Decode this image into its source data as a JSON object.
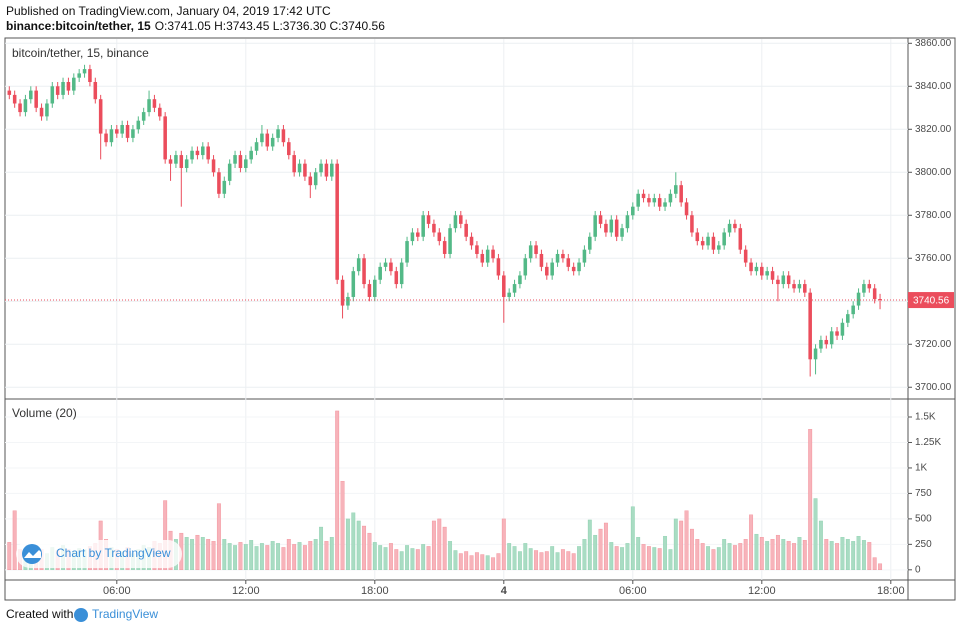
{
  "header": {
    "published": "Published on TradingView.com, January 04, 2019 17:42 UTC",
    "symbol": "binance:bitcoin/tether, 15",
    "ohlc": "O:3741.05 H:3743.45 L:3736.30 C:3740.56"
  },
  "watermark": "Chart by TradingView",
  "footer": {
    "prefix": "Created with",
    "brand": "TradingView"
  },
  "chart_data": {
    "type": "candlestick",
    "title": "bitcoin/tether, 15, binance",
    "up_color": "#53b987",
    "down_color": "#eb4d5c",
    "grid": true,
    "x": [
      1,
      1.25,
      1.5,
      1.75,
      2,
      2.25,
      2.5,
      2.75,
      3,
      3.25,
      3.5,
      3.75,
      4,
      4.25,
      4.5,
      4.75,
      5,
      5.25,
      5.5,
      5.75,
      6,
      6.25,
      6.5,
      6.75,
      7,
      7.25,
      7.5,
      7.75,
      8,
      8.25,
      8.5,
      8.75,
      9,
      9.25,
      9.5,
      9.75,
      10,
      10.25,
      10.5,
      10.75,
      11,
      11.25,
      11.5,
      11.75,
      12,
      12.25,
      12.5,
      12.75,
      13,
      13.25,
      13.5,
      13.75,
      14,
      14.25,
      14.5,
      14.75,
      15,
      15.25,
      15.5,
      15.75,
      16,
      16.25,
      16.5,
      16.75,
      17,
      17.25,
      17.5,
      17.75,
      18,
      18.25,
      18.5,
      18.75,
      19,
      19.25,
      19.5,
      19.75,
      20,
      20.25,
      20.5,
      20.75,
      21,
      21.25,
      21.5,
      21.75,
      22,
      22.25,
      22.5,
      22.75,
      23,
      23.25,
      23.5,
      23.75,
      24,
      24.25,
      24.5,
      24.75,
      25,
      25.25,
      25.5,
      25.75,
      26,
      26.25,
      26.5,
      26.75,
      27,
      27.25,
      27.5,
      27.75,
      28,
      28.25,
      28.5,
      28.75,
      29,
      29.25,
      29.5,
      29.75,
      30,
      30.25,
      30.5,
      30.75,
      31,
      31.25,
      31.5,
      31.75,
      32,
      32.25,
      32.5,
      32.75,
      33,
      33.25,
      33.5,
      33.75,
      34,
      34.25,
      34.5,
      34.75,
      35,
      35.25,
      35.5,
      35.75,
      36,
      36.25,
      36.5,
      36.75,
      37,
      37.25,
      37.5,
      37.75,
      38,
      38.25,
      38.5,
      38.75,
      39,
      39.25,
      39.5,
      39.75,
      40,
      40.25,
      40.5,
      40.75,
      41,
      41.25,
      41.5
    ],
    "open": [
      3838,
      3836,
      3832,
      3828,
      3834,
      3838,
      3830,
      3826,
      3832,
      3840,
      3836,
      3842,
      3838,
      3844,
      3846,
      3848,
      3842,
      3834,
      3818,
      3814,
      3820,
      3818,
      3822,
      3816,
      3820,
      3824,
      3828,
      3834,
      3830,
      3826,
      3806,
      3804,
      3808,
      3802,
      3806,
      3810,
      3808,
      3812,
      3806,
      3800,
      3790,
      3796,
      3804,
      3808,
      3802,
      3806,
      3810,
      3814,
      3818,
      3812,
      3816,
      3820,
      3814,
      3808,
      3800,
      3804,
      3798,
      3794,
      3800,
      3804,
      3798,
      3804,
      3750,
      3738,
      3742,
      3754,
      3760,
      3748,
      3742,
      3750,
      3756,
      3758,
      3754,
      3748,
      3758,
      3768,
      3772,
      3770,
      3780,
      3776,
      3772,
      3768,
      3762,
      3774,
      3780,
      3776,
      3770,
      3766,
      3762,
      3758,
      3764,
      3760,
      3752,
      3742,
      3744,
      3748,
      3752,
      3760,
      3766,
      3762,
      3756,
      3752,
      3758,
      3762,
      3760,
      3756,
      3754,
      3758,
      3764,
      3770,
      3780,
      3776,
      3772,
      3778,
      3770,
      3774,
      3780,
      3784,
      3790,
      3788,
      3786,
      3788,
      3784,
      3786,
      3790,
      3794,
      3786,
      3780,
      3772,
      3768,
      3766,
      3770,
      3764,
      3766,
      3772,
      3776,
      3774,
      3764,
      3758,
      3754,
      3756,
      3752,
      3754,
      3750,
      3748,
      3752,
      3748,
      3746,
      3748,
      3744,
      3713,
      3718,
      3722,
      3720,
      3726,
      3724,
      3730,
      3734,
      3738,
      3744,
      3748,
      3746,
      3741.05
    ],
    "high": [
      3840,
      3838,
      3834,
      3836,
      3840,
      3840,
      3832,
      3834,
      3842,
      3842,
      3844,
      3844,
      3846,
      3848,
      3850,
      3850,
      3844,
      3836,
      3820,
      3822,
      3822,
      3824,
      3824,
      3822,
      3826,
      3830,
      3838,
      3836,
      3832,
      3828,
      3808,
      3810,
      3810,
      3808,
      3812,
      3812,
      3814,
      3814,
      3808,
      3802,
      3798,
      3806,
      3810,
      3810,
      3808,
      3812,
      3816,
      3822,
      3820,
      3818,
      3822,
      3822,
      3816,
      3810,
      3806,
      3806,
      3800,
      3802,
      3806,
      3806,
      3806,
      3806,
      3752,
      3744,
      3756,
      3762,
      3762,
      3750,
      3752,
      3758,
      3760,
      3760,
      3756,
      3760,
      3770,
      3774,
      3774,
      3782,
      3782,
      3778,
      3774,
      3770,
      3776,
      3782,
      3782,
      3778,
      3772,
      3768,
      3764,
      3766,
      3766,
      3762,
      3754,
      3746,
      3750,
      3754,
      3762,
      3768,
      3768,
      3764,
      3758,
      3760,
      3764,
      3764,
      3762,
      3758,
      3760,
      3766,
      3772,
      3782,
      3782,
      3778,
      3780,
      3780,
      3776,
      3782,
      3786,
      3792,
      3792,
      3790,
      3790,
      3790,
      3788,
      3792,
      3800,
      3796,
      3788,
      3782,
      3774,
      3770,
      3772,
      3772,
      3768,
      3774,
      3778,
      3778,
      3776,
      3766,
      3760,
      3758,
      3758,
      3756,
      3756,
      3752,
      3754,
      3754,
      3750,
      3750,
      3750,
      3746,
      3720,
      3724,
      3724,
      3728,
      3728,
      3732,
      3736,
      3740,
      3746,
      3750,
      3750,
      3748,
      3743.45
    ],
    "low": [
      3834,
      3830,
      3826,
      3826,
      3832,
      3828,
      3824,
      3824,
      3830,
      3834,
      3834,
      3836,
      3836,
      3842,
      3844,
      3840,
      3832,
      3806,
      3812,
      3812,
      3816,
      3816,
      3814,
      3814,
      3818,
      3822,
      3826,
      3828,
      3824,
      3804,
      3796,
      3802,
      3784,
      3800,
      3804,
      3806,
      3806,
      3804,
      3798,
      3788,
      3788,
      3794,
      3802,
      3800,
      3800,
      3804,
      3808,
      3812,
      3810,
      3810,
      3814,
      3812,
      3806,
      3798,
      3798,
      3796,
      3788,
      3792,
      3798,
      3796,
      3796,
      3748,
      3732,
      3736,
      3740,
      3752,
      3746,
      3740,
      3740,
      3748,
      3754,
      3752,
      3746,
      3746,
      3756,
      3766,
      3768,
      3768,
      3774,
      3770,
      3766,
      3760,
      3760,
      3772,
      3774,
      3768,
      3764,
      3760,
      3756,
      3756,
      3758,
      3750,
      3730,
      3740,
      3742,
      3746,
      3750,
      3758,
      3760,
      3754,
      3750,
      3750,
      3756,
      3758,
      3754,
      3752,
      3752,
      3756,
      3762,
      3768,
      3774,
      3770,
      3770,
      3768,
      3768,
      3772,
      3778,
      3782,
      3786,
      3784,
      3784,
      3782,
      3782,
      3784,
      3788,
      3784,
      3778,
      3770,
      3766,
      3764,
      3764,
      3762,
      3762,
      3764,
      3770,
      3772,
      3762,
      3756,
      3752,
      3752,
      3750,
      3750,
      3748,
      3740,
      3746,
      3746,
      3744,
      3744,
      3742,
      3705,
      3706,
      3716,
      3718,
      3718,
      3722,
      3722,
      3728,
      3732,
      3736,
      3742,
      3744,
      3739,
      3736.3
    ],
    "close": [
      3836,
      3832,
      3828,
      3834,
      3838,
      3830,
      3826,
      3832,
      3840,
      3836,
      3842,
      3838,
      3844,
      3846,
      3848,
      3842,
      3834,
      3818,
      3814,
      3820,
      3818,
      3822,
      3816,
      3820,
      3824,
      3828,
      3834,
      3830,
      3826,
      3806,
      3804,
      3808,
      3802,
      3806,
      3810,
      3808,
      3812,
      3806,
      3800,
      3790,
      3796,
      3804,
      3808,
      3802,
      3806,
      3810,
      3814,
      3818,
      3812,
      3816,
      3820,
      3814,
      3808,
      3800,
      3804,
      3798,
      3794,
      3800,
      3804,
      3798,
      3804,
      3750,
      3738,
      3742,
      3754,
      3760,
      3748,
      3742,
      3750,
      3756,
      3758,
      3754,
      3748,
      3758,
      3768,
      3772,
      3770,
      3780,
      3776,
      3772,
      3768,
      3762,
      3774,
      3780,
      3776,
      3770,
      3766,
      3762,
      3758,
      3764,
      3760,
      3752,
      3742,
      3744,
      3748,
      3752,
      3760,
      3766,
      3762,
      3756,
      3752,
      3758,
      3762,
      3760,
      3756,
      3754,
      3758,
      3764,
      3770,
      3780,
      3776,
      3772,
      3778,
      3770,
      3774,
      3780,
      3784,
      3790,
      3788,
      3786,
      3788,
      3784,
      3786,
      3790,
      3794,
      3786,
      3780,
      3772,
      3768,
      3766,
      3770,
      3764,
      3766,
      3772,
      3776,
      3774,
      3764,
      3758,
      3754,
      3756,
      3752,
      3754,
      3750,
      3748,
      3752,
      3748,
      3746,
      3748,
      3744,
      3713,
      3718,
      3722,
      3720,
      3726,
      3724,
      3730,
      3734,
      3738,
      3744,
      3748,
      3746,
      3741.05,
      3740.56
    ],
    "xlim": [
      0.8,
      42.8
    ],
    "xticks": [
      {
        "value": 6,
        "label": "06:00"
      },
      {
        "value": 12,
        "label": "12:00"
      },
      {
        "value": 18,
        "label": "18:00"
      },
      {
        "value": 24,
        "label": "4"
      },
      {
        "value": 30,
        "label": "06:00"
      },
      {
        "value": 36,
        "label": "12:00"
      },
      {
        "value": 42,
        "label": "18:00"
      }
    ],
    "ylim": [
      3695,
      3862
    ],
    "yticks": [
      {
        "value": 3700,
        "label": "3700.00"
      },
      {
        "value": 3720,
        "label": "3720.00"
      },
      {
        "value": 3740,
        "label": "3740.00"
      },
      {
        "value": 3760,
        "label": "3760.00"
      },
      {
        "value": 3780,
        "label": "3780.00"
      },
      {
        "value": 3800,
        "label": "3800.00"
      },
      {
        "value": 3820,
        "label": "3820.00"
      },
      {
        "value": 3840,
        "label": "3840.00"
      },
      {
        "value": 3860,
        "label": "3860.00"
      }
    ],
    "volume": {
      "title": "Volume (20)",
      "up_color": "#a9dcc3",
      "down_color": "#f7b3ba",
      "values": [
        270,
        580,
        200,
        180,
        230,
        180,
        200,
        160,
        220,
        190,
        240,
        200,
        180,
        210,
        200,
        230,
        260,
        480,
        300,
        220,
        200,
        180,
        220,
        160,
        200,
        240,
        220,
        280,
        260,
        680,
        380,
        300,
        360,
        320,
        300,
        340,
        320,
        300,
        280,
        650,
        300,
        260,
        240,
        270,
        250,
        290,
        230,
        260,
        240,
        280,
        260,
        220,
        300,
        250,
        270,
        240,
        280,
        300,
        420,
        280,
        320,
        1560,
        870,
        500,
        560,
        480,
        430,
        360,
        270,
        240,
        220,
        260,
        200,
        180,
        240,
        210,
        200,
        250,
        230,
        480,
        500,
        420,
        280,
        190,
        160,
        180,
        140,
        170,
        150,
        140,
        120,
        160,
        500,
        260,
        230,
        180,
        260,
        210,
        190,
        170,
        180,
        230,
        170,
        200,
        180,
        160,
        230,
        300,
        490,
        340,
        400,
        460,
        270,
        230,
        220,
        260,
        620,
        320,
        250,
        230,
        220,
        210,
        330,
        200,
        500,
        480,
        580,
        400,
        300,
        260,
        230,
        200,
        220,
        300,
        260,
        240,
        260,
        300,
        540,
        350,
        320,
        280,
        300,
        340,
        300,
        280,
        260,
        320,
        290,
        1380,
        700,
        480,
        300,
        280,
        260,
        320,
        300,
        280,
        330,
        290,
        270,
        120,
        60
      ],
      "ylim": [
        -100,
        1667
      ],
      "yticks": [
        0,
        250,
        500,
        750,
        {
          "value": 1000,
          "label": "1K"
        },
        {
          "value": 1250,
          "label": "1.25K"
        },
        {
          "value": 1500,
          "label": "1.5K"
        }
      ]
    }
  }
}
